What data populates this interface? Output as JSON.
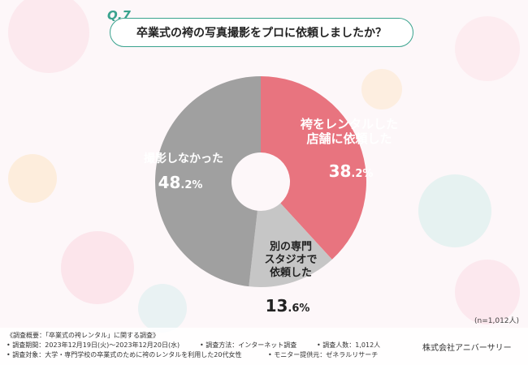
{
  "question": {
    "number": "Q.7",
    "text": "卒業式の袴の写真撮影をプロに依頼しましたか？"
  },
  "chart_data": {
    "type": "pie",
    "donut": true,
    "title": "卒業式の袴の写真撮影をプロに依頼しましたか？",
    "slices": [
      {
        "label_lines": [
          "袴をレンタルした",
          "店舗に依頼した"
        ],
        "value": 38.2,
        "value_text": "38",
        "decimal_text": ".2%",
        "color": "#e8747f"
      },
      {
        "label_lines": [
          "別の専門",
          "スタジオで",
          "依頼した"
        ],
        "value": 13.6,
        "value_text": "13",
        "decimal_text": ".6%",
        "color": "#c6c6c6"
      },
      {
        "label_lines": [
          "撮影しなかった"
        ],
        "value": 48.2,
        "value_text": "48",
        "decimal_text": ".2%",
        "color": "#a0a0a0"
      }
    ],
    "sample_note": "(n=1,012人)"
  },
  "footer": {
    "line1": "《調査概要：「卒業式の袴レンタル」に関する調査》",
    "period": "• 調査期間：2023年12月19日(火)～2023年12月20日(水)",
    "method": "• 調査方法：インターネット調査",
    "count": "• 調査人数：1,012人",
    "target": "• 調査対象：大学・専門学校の卒業式のために袴のレンタルを利用した20代女性",
    "provider": "• モニター提供元：ゼネラルリサーチ",
    "company": "株式会社アニバーサリー"
  }
}
